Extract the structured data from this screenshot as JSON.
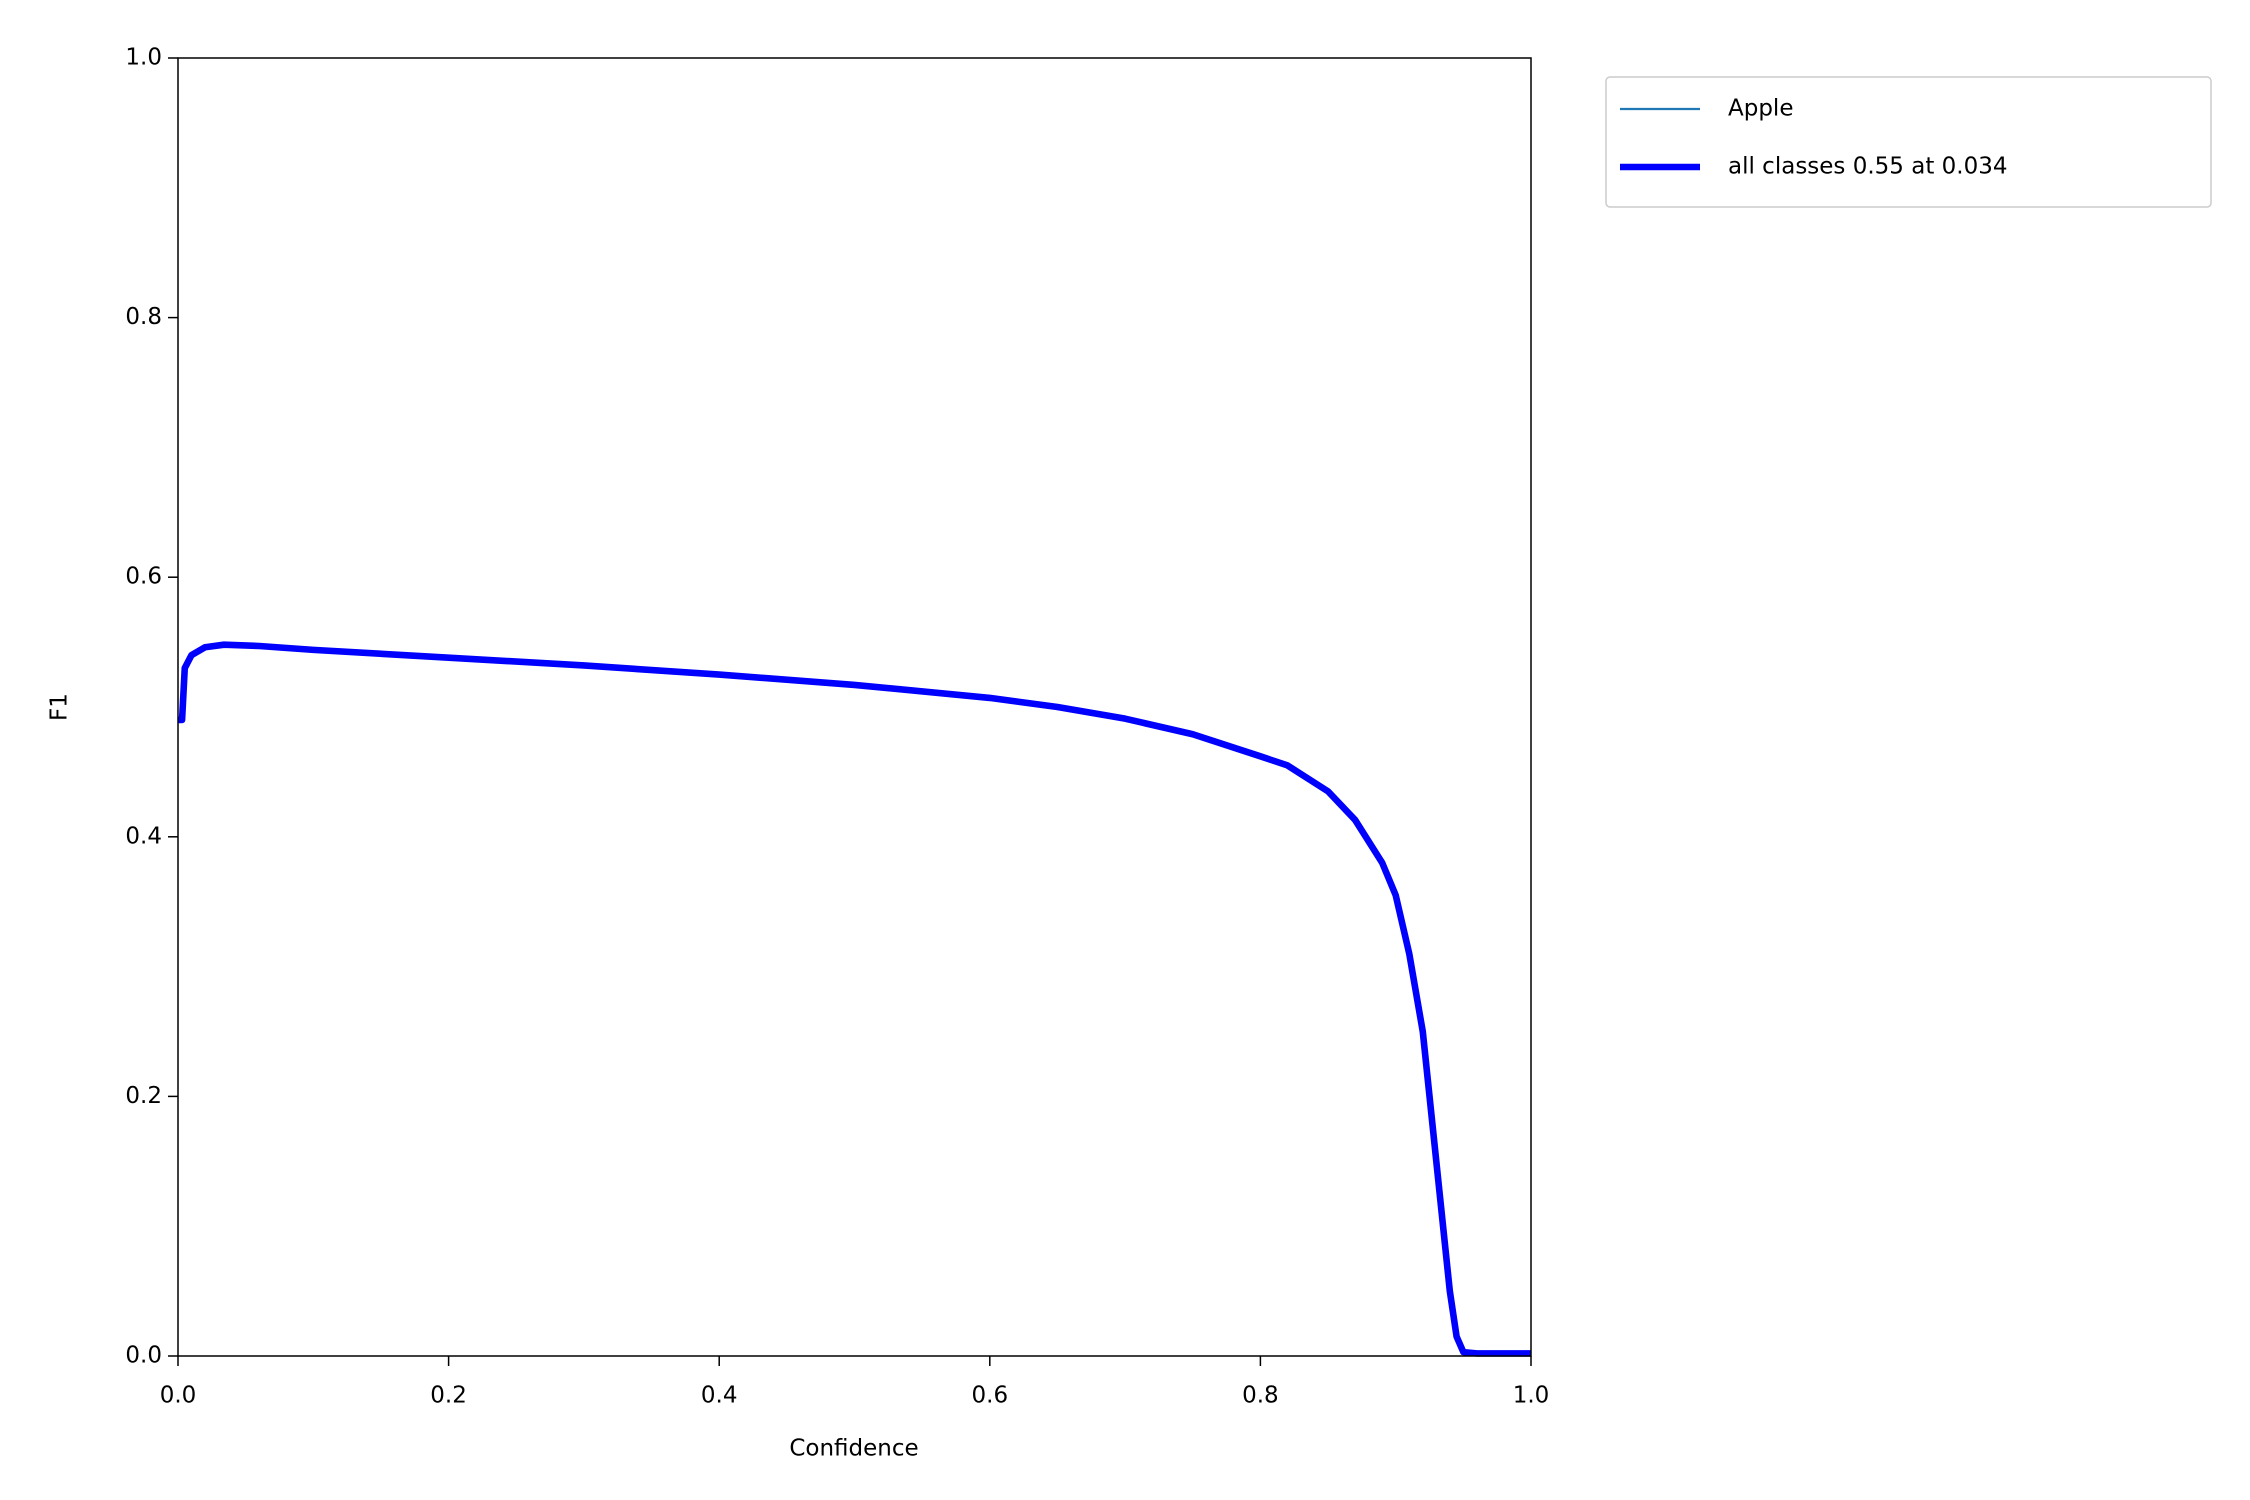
{
  "chart_data": {
    "type": "line",
    "xlabel": "Confidence",
    "ylabel": "F1",
    "x": [
      0.0,
      0.003,
      0.005,
      0.01,
      0.02,
      0.034,
      0.06,
      0.1,
      0.2,
      0.3,
      0.4,
      0.5,
      0.6,
      0.65,
      0.7,
      0.75,
      0.8,
      0.82,
      0.85,
      0.87,
      0.89,
      0.9,
      0.91,
      0.92,
      0.93,
      0.94,
      0.945,
      0.95,
      0.96,
      1.0
    ],
    "series": [
      {
        "name": "Apple",
        "color": "#1f77b4",
        "linewidth": 1,
        "values": [
          0.49,
          0.49,
          0.53,
          0.54,
          0.546,
          0.548,
          0.547,
          0.544,
          0.538,
          0.532,
          0.525,
          0.517,
          0.507,
          0.5,
          0.491,
          0.479,
          0.462,
          0.455,
          0.435,
          0.413,
          0.38,
          0.355,
          0.31,
          0.25,
          0.15,
          0.05,
          0.015,
          0.003,
          0.002,
          0.002
        ]
      },
      {
        "name": "all classes 0.55 at 0.034",
        "color": "#0000ff",
        "linewidth": 3,
        "values": [
          0.49,
          0.49,
          0.53,
          0.54,
          0.546,
          0.548,
          0.547,
          0.544,
          0.538,
          0.532,
          0.525,
          0.517,
          0.507,
          0.5,
          0.491,
          0.479,
          0.462,
          0.455,
          0.435,
          0.413,
          0.38,
          0.355,
          0.31,
          0.25,
          0.15,
          0.05,
          0.015,
          0.003,
          0.002,
          0.002
        ]
      }
    ],
    "xlim": [
      0,
      1
    ],
    "ylim": [
      0,
      1
    ],
    "xticks": [
      {
        "value": 0,
        "label": "0.0"
      },
      0.2,
      0.4,
      0.6,
      0.8,
      {
        "value": 1,
        "label": "1.0"
      }
    ],
    "yticks": [
      {
        "value": 0,
        "label": "0.0"
      },
      0.2,
      0.4,
      0.6,
      0.8,
      {
        "value": 1,
        "label": "1.0"
      }
    ],
    "grid": false,
    "legend": "outside upper right"
  }
}
